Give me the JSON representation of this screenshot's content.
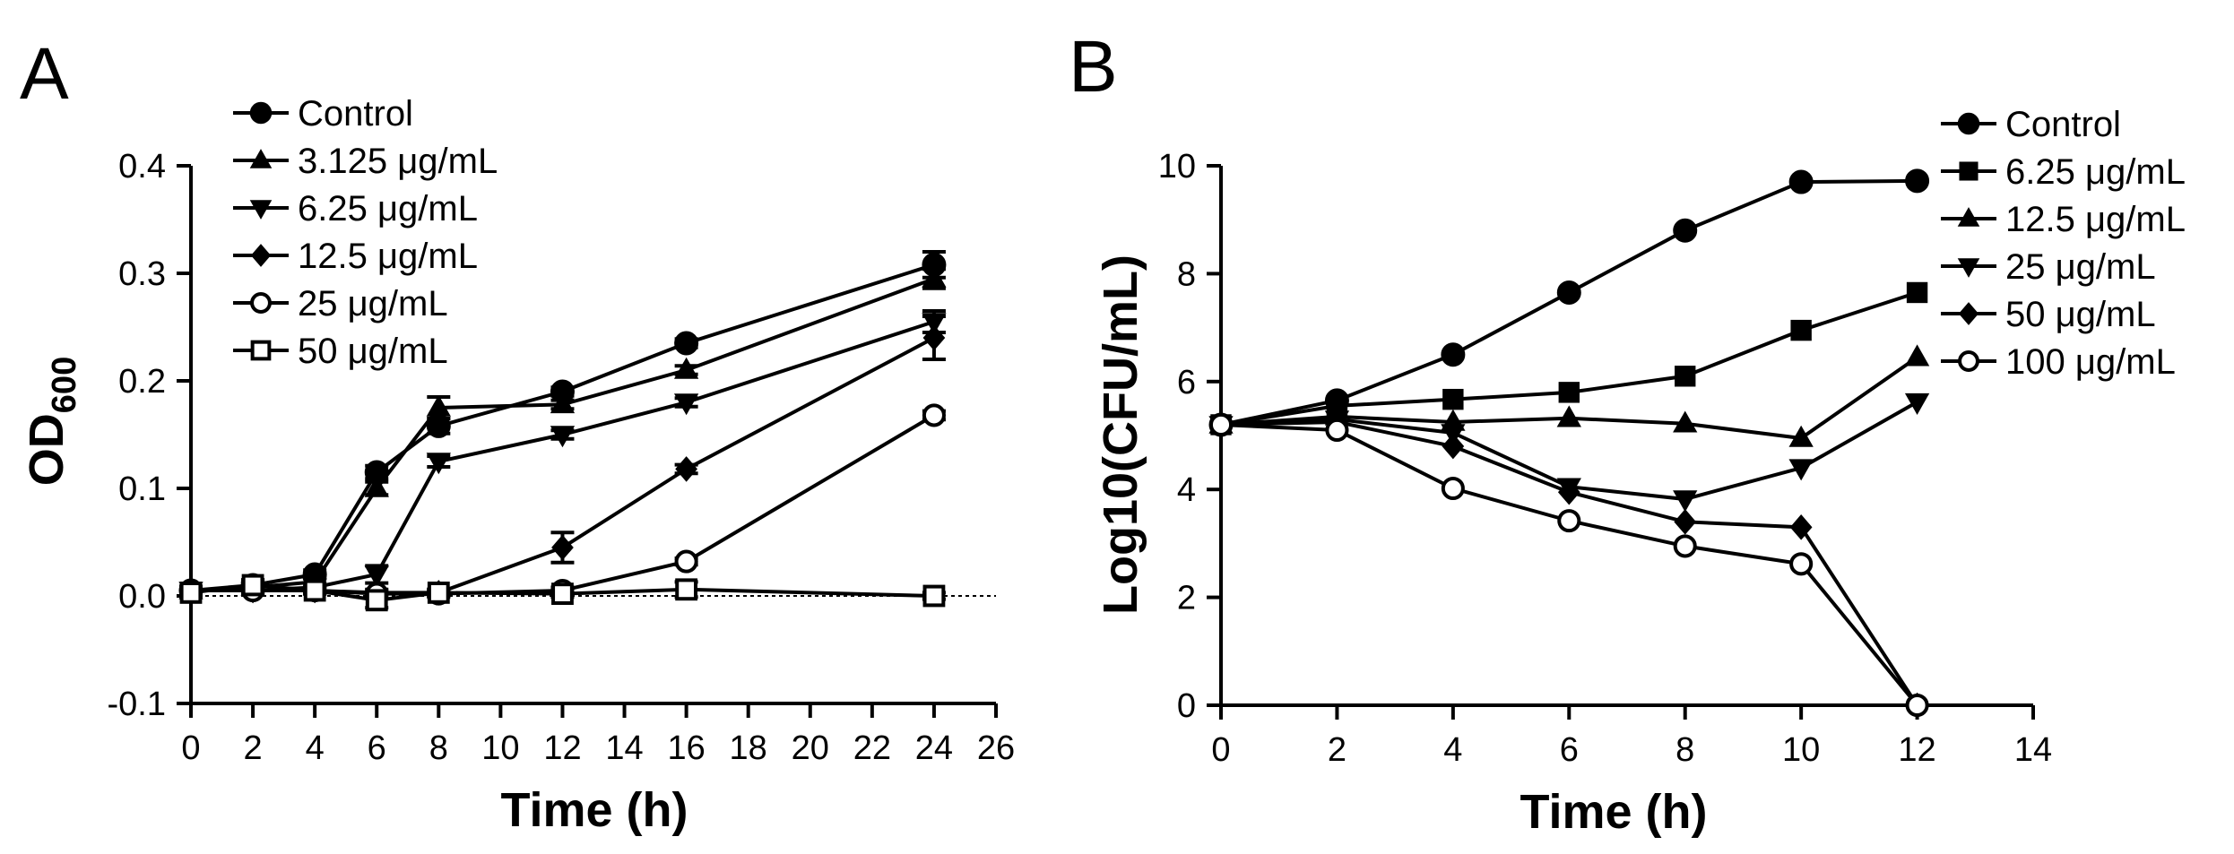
{
  "chart_data": [
    {
      "type": "line",
      "panel_label": "A",
      "xlabel": "Time (h)",
      "ylabel_main": "OD",
      "ylabel_sub": "600",
      "xlim": [
        0,
        26
      ],
      "ylim": [
        -0.1,
        0.4
      ],
      "xticks": [
        0,
        2,
        4,
        6,
        8,
        10,
        12,
        14,
        16,
        18,
        20,
        22,
        24,
        26
      ],
      "xtick_labels": [
        "0",
        "2",
        "4",
        "6",
        "8",
        "10",
        "12",
        "14",
        "16",
        "18",
        "20",
        "22",
        "24",
        "26"
      ],
      "yticks": [
        -0.1,
        0.0,
        0.1,
        0.2,
        0.3,
        0.4
      ],
      "ytick_labels": [
        "-0.1",
        "0.0",
        "0.1",
        "0.2",
        "0.3",
        "0.4"
      ],
      "reference_line_y": 0,
      "legend_position": "top-left",
      "series": [
        {
          "name": "Control",
          "marker": "circle-filled",
          "x": [
            0,
            2,
            4,
            6,
            8,
            12,
            16,
            24
          ],
          "values": [
            0.005,
            0.01,
            0.02,
            0.115,
            0.158,
            0.19,
            0.235,
            0.308
          ],
          "errors": [
            0.004,
            0.004,
            0.004,
            0.006,
            0.007,
            0.004,
            0.004,
            0.012
          ]
        },
        {
          "name": "3.125 μg/mL",
          "marker": "triangle-up",
          "x": [
            0,
            2,
            4,
            6,
            8,
            12,
            16,
            24
          ],
          "values": [
            0.005,
            0.008,
            0.013,
            0.1,
            0.175,
            0.178,
            0.21,
            0.295
          ],
          "errors": [
            0.003,
            0.004,
            0.004,
            0.006,
            0.01,
            0.004,
            0.004,
            0.009
          ]
        },
        {
          "name": "6.25 μg/mL",
          "marker": "triangle-down",
          "x": [
            0,
            2,
            4,
            6,
            8,
            12,
            16,
            24
          ],
          "values": [
            0.005,
            0.005,
            0.008,
            0.02,
            0.125,
            0.15,
            0.18,
            0.255
          ],
          "errors": [
            0.003,
            0.003,
            0.004,
            0.008,
            0.005,
            0.004,
            0.004,
            0.01
          ]
        },
        {
          "name": "12.5 μg/mL",
          "marker": "diamond",
          "x": [
            0,
            2,
            4,
            6,
            8,
            12,
            16,
            24
          ],
          "values": [
            0.005,
            0.005,
            0.005,
            0.003,
            0.003,
            0.045,
            0.118,
            0.24
          ],
          "errors": [
            0.003,
            0.003,
            0.003,
            0.003,
            0.003,
            0.014,
            0.004,
            0.02
          ]
        },
        {
          "name": "25 μg/mL",
          "marker": "circle-open",
          "x": [
            0,
            2,
            4,
            6,
            8,
            12,
            16,
            24
          ],
          "values": [
            0.005,
            0.005,
            0.005,
            0.002,
            0.002,
            0.005,
            0.032,
            0.168
          ],
          "errors": [
            0.003,
            0.003,
            0.003,
            0.003,
            0.003,
            0.003,
            0.003,
            0.004
          ]
        },
        {
          "name": "50 μg/mL",
          "marker": "square-open",
          "x": [
            0,
            2,
            4,
            6,
            8,
            12,
            16,
            24
          ],
          "values": [
            0.003,
            0.01,
            0.005,
            -0.004,
            0.003,
            0.002,
            0.006,
            0.0
          ],
          "errors": [
            0.003,
            0.005,
            0.003,
            0.007,
            0.003,
            0.003,
            0.007,
            0.003
          ]
        }
      ]
    },
    {
      "type": "line",
      "panel_label": "B",
      "xlabel": "Time (h)",
      "ylabel": "Log10(CFU/mL)",
      "xlim": [
        0,
        14
      ],
      "ylim": [
        0,
        10
      ],
      "xticks": [
        0,
        2,
        4,
        6,
        8,
        10,
        12,
        14
      ],
      "xtick_labels": [
        "0",
        "2",
        "4",
        "6",
        "8",
        "10",
        "12",
        "14"
      ],
      "yticks": [
        0,
        2,
        4,
        6,
        8,
        10
      ],
      "ytick_labels": [
        "0",
        "2",
        "4",
        "6",
        "8",
        "10"
      ],
      "legend_position": "top-right",
      "series": [
        {
          "name": "Control",
          "marker": "circle-filled",
          "x": [
            0,
            2,
            4,
            6,
            8,
            10,
            12
          ],
          "values": [
            5.2,
            5.65,
            6.5,
            7.65,
            8.8,
            9.7,
            9.72
          ]
        },
        {
          "name": "6.25 μg/mL",
          "marker": "square-filled",
          "x": [
            0,
            2,
            4,
            6,
            8,
            10,
            12
          ],
          "values": [
            5.2,
            5.55,
            5.67,
            5.8,
            6.1,
            6.95,
            7.65
          ]
        },
        {
          "name": "12.5 μg/mL",
          "marker": "triangle-up",
          "x": [
            0,
            2,
            4,
            6,
            8,
            10,
            12
          ],
          "values": [
            5.2,
            5.35,
            5.25,
            5.32,
            5.22,
            4.95,
            6.45
          ]
        },
        {
          "name": "25 μg/mL",
          "marker": "triangle-down",
          "x": [
            0,
            2,
            4,
            6,
            8,
            10,
            12
          ],
          "values": [
            5.2,
            5.3,
            5.05,
            4.05,
            3.82,
            4.4,
            5.62
          ]
        },
        {
          "name": "50 μg/mL",
          "marker": "diamond",
          "x": [
            0,
            2,
            4,
            6,
            8,
            10,
            12
          ],
          "values": [
            5.2,
            5.25,
            4.8,
            3.95,
            3.4,
            3.3,
            0.0
          ]
        },
        {
          "name": "100 μg/mL",
          "marker": "circle-open",
          "x": [
            0,
            2,
            4,
            6,
            8,
            10,
            12
          ],
          "values": [
            5.2,
            5.1,
            4.02,
            3.42,
            2.95,
            2.62,
            0.0
          ]
        }
      ]
    }
  ]
}
